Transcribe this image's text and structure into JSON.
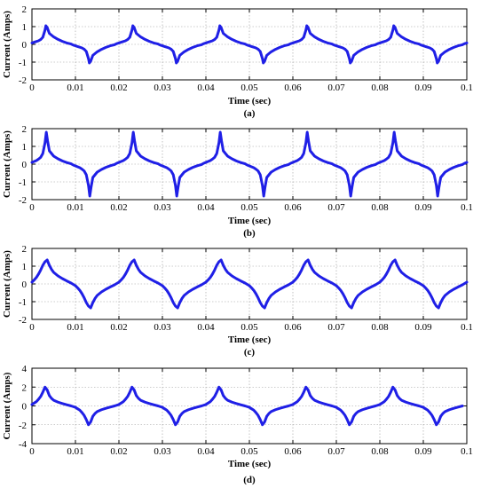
{
  "chart_data": [
    {
      "type": "line",
      "panel_label": "(a)",
      "xlabel": "Time (sec)",
      "ylabel": "Current (Amps)",
      "xlim": [
        0,
        0.1
      ],
      "ylim": [
        -2,
        2
      ],
      "xticks": [
        "0",
        "0.01",
        "0.02",
        "0.03",
        "0.04",
        "0.05",
        "0.06",
        "0.07",
        "0.08",
        "0.09",
        "0.1"
      ],
      "yticks": [
        "2",
        "1",
        "0",
        "-1",
        "-2"
      ],
      "grid": true,
      "color": "#1f1fe6",
      "period": 0.02,
      "x": [
        0,
        0.0005,
        0.001,
        0.0015,
        0.002,
        0.0025,
        0.003,
        0.0032,
        0.0035,
        0.004,
        0.005,
        0.006,
        0.007,
        0.008,
        0.009,
        0.0095,
        0.01,
        0.0105,
        0.011,
        0.0115,
        0.012,
        0.0125,
        0.013,
        0.0132,
        0.0135,
        0.014,
        0.015,
        0.016,
        0.017,
        0.018,
        0.019,
        0.0195,
        0.02
      ],
      "y": [
        0.08,
        0.12,
        0.16,
        0.2,
        0.27,
        0.4,
        0.8,
        1.05,
        0.95,
        0.62,
        0.42,
        0.28,
        0.17,
        0.08,
        0.02,
        -0.04,
        -0.08,
        -0.12,
        -0.16,
        -0.2,
        -0.27,
        -0.4,
        -0.8,
        -1.05,
        -0.95,
        -0.62,
        -0.42,
        -0.28,
        -0.17,
        -0.08,
        -0.02,
        0.04,
        0.08
      ]
    },
    {
      "type": "line",
      "panel_label": "(b)",
      "xlabel": "Time (sec)",
      "ylabel": "Current (Amps)",
      "xlim": [
        0,
        0.1
      ],
      "ylim": [
        -2,
        2
      ],
      "xticks": [
        "0",
        "0.01",
        "0.02",
        "0.03",
        "0.04",
        "0.05",
        "0.06",
        "0.07",
        "0.08",
        "0.09",
        "0.1"
      ],
      "yticks": [
        "2",
        "1",
        "0",
        "-1",
        "-2"
      ],
      "grid": true,
      "color": "#1f1fe6",
      "period": 0.02,
      "x": [
        0,
        0.0005,
        0.001,
        0.0015,
        0.002,
        0.0025,
        0.003,
        0.0033,
        0.0036,
        0.004,
        0.005,
        0.006,
        0.007,
        0.008,
        0.009,
        0.0095,
        0.01,
        0.0105,
        0.011,
        0.0115,
        0.012,
        0.0125,
        0.013,
        0.0133,
        0.0136,
        0.014,
        0.015,
        0.016,
        0.017,
        0.018,
        0.019,
        0.0195,
        0.02
      ],
      "y": [
        0.1,
        0.15,
        0.2,
        0.28,
        0.38,
        0.6,
        1.2,
        1.8,
        1.3,
        0.75,
        0.45,
        0.3,
        0.18,
        0.09,
        0.02,
        -0.05,
        -0.1,
        -0.15,
        -0.2,
        -0.28,
        -0.38,
        -0.6,
        -1.2,
        -1.8,
        -1.3,
        -0.75,
        -0.45,
        -0.3,
        -0.18,
        -0.09,
        -0.02,
        0.05,
        0.1
      ]
    },
    {
      "type": "line",
      "panel_label": "(c)",
      "xlabel": "Time (sec)",
      "ylabel": "Current (Amps)",
      "xlim": [
        0,
        0.1
      ],
      "ylim": [
        -2,
        2
      ],
      "xticks": [
        "0",
        "0.01",
        "0.02",
        "0.03",
        "0.04",
        "0.05",
        "0.06",
        "0.07",
        "0.08",
        "0.09",
        "0.1"
      ],
      "yticks": [
        "2",
        "1",
        "0",
        "-1",
        "-2"
      ],
      "grid": true,
      "color": "#1f1fe6",
      "period": 0.02,
      "x": [
        0,
        0.0005,
        0.001,
        0.0015,
        0.002,
        0.0025,
        0.003,
        0.0035,
        0.004,
        0.0045,
        0.005,
        0.006,
        0.007,
        0.008,
        0.009,
        0.01,
        0.0105,
        0.011,
        0.0115,
        0.012,
        0.0125,
        0.013,
        0.0135,
        0.014,
        0.0145,
        0.015,
        0.016,
        0.017,
        0.018,
        0.019,
        0.02
      ],
      "y": [
        0.1,
        0.22,
        0.36,
        0.55,
        0.78,
        1.05,
        1.25,
        1.35,
        1.05,
        0.82,
        0.65,
        0.45,
        0.3,
        0.17,
        0.05,
        -0.1,
        -0.22,
        -0.36,
        -0.55,
        -0.78,
        -1.05,
        -1.25,
        -1.35,
        -1.05,
        -0.82,
        -0.65,
        -0.45,
        -0.3,
        -0.17,
        -0.05,
        0.1
      ]
    },
    {
      "type": "line",
      "panel_label": "(d)",
      "xlabel": "Time (sec)",
      "ylabel": "Current (Amps)",
      "xlim": [
        0,
        0.1
      ],
      "ylim": [
        -4,
        4
      ],
      "xticks": [
        "0",
        "0.01",
        "0.02",
        "0.03",
        "0.04",
        "0.05",
        "0.06",
        "0.07",
        "0.08",
        "0.09",
        "0.1"
      ],
      "yticks": [
        "4",
        "2",
        "0",
        "-2",
        "-4"
      ],
      "grid": true,
      "color": "#1f1fe6",
      "period": 0.02,
      "x": [
        0,
        0.0005,
        0.001,
        0.0015,
        0.002,
        0.0025,
        0.003,
        0.0035,
        0.004,
        0.0045,
        0.005,
        0.006,
        0.007,
        0.008,
        0.009,
        0.01,
        0.0105,
        0.011,
        0.0115,
        0.012,
        0.0125,
        0.013,
        0.0135,
        0.014,
        0.0145,
        0.015,
        0.016,
        0.017,
        0.018,
        0.019,
        0.02
      ],
      "y": [
        0.15,
        0.3,
        0.45,
        0.7,
        1.0,
        1.45,
        2.0,
        1.7,
        1.1,
        0.8,
        0.6,
        0.4,
        0.25,
        0.12,
        0.0,
        -0.15,
        -0.3,
        -0.45,
        -0.7,
        -1.0,
        -1.45,
        -2.0,
        -1.7,
        -1.1,
        -0.8,
        -0.6,
        -0.4,
        -0.25,
        -0.12,
        0.0,
        0.15
      ],
      "x_end": 0.099
    }
  ]
}
